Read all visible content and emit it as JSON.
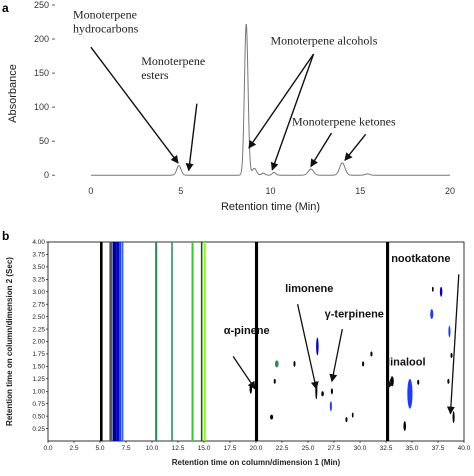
{
  "chart_data": [
    {
      "panel": "a",
      "type": "line",
      "xlabel": "Retention time (Min)",
      "ylabel": "Absorbance",
      "xlim": [
        -2,
        21
      ],
      "ylim": [
        -10,
        250
      ],
      "xticks": [
        0,
        5,
        10,
        15,
        20
      ],
      "yticks": [
        0,
        50,
        100,
        150,
        200,
        250
      ],
      "grid": false,
      "line_color": "#777777",
      "peaks": [
        {
          "rt": 4.9,
          "height": 14,
          "width": 0.12
        },
        {
          "rt": 8.65,
          "height": 222,
          "width": 0.1
        },
        {
          "rt": 9.1,
          "height": 10,
          "width": 0.12
        },
        {
          "rt": 9.6,
          "height": 3,
          "width": 0.1
        },
        {
          "rt": 10.2,
          "height": 4,
          "width": 0.1
        },
        {
          "rt": 12.25,
          "height": 9,
          "width": 0.15
        },
        {
          "rt": 14.0,
          "height": 18,
          "width": 0.15
        },
        {
          "rt": 15.4,
          "height": 2,
          "width": 0.12
        }
      ],
      "trace_range": [
        0,
        20
      ],
      "annotations": [
        {
          "lines": [
            "Monoterpene",
            "hydrocarbons"
          ],
          "text_x": -1.0,
          "text_y": 230,
          "arrow_from": [
            0.0,
            188
          ],
          "arrow_to": [
            4.85,
            18
          ]
        },
        {
          "lines": [
            "Monoterpene",
            "esters"
          ],
          "text_x": 2.8,
          "text_y": 162,
          "arrow_from": [
            5.9,
            105
          ],
          "arrow_to": [
            5.45,
            7
          ]
        },
        {
          "lines": [
            "Monoterpene alcohols"
          ],
          "text_x": 10.0,
          "text_y": 192,
          "arrow_from": [
            12.4,
            178
          ],
          "arrow_to": [
            8.8,
            40
          ]
        },
        {
          "lines": [],
          "text_x": 0,
          "text_y": 0,
          "arrow_from": [
            12.4,
            178
          ],
          "arrow_to": [
            10.1,
            8
          ]
        },
        {
          "lines": [
            "Monoterpene ketones"
          ],
          "text_x": 11.2,
          "text_y": 73,
          "arrow_from": [
            13.4,
            62
          ],
          "arrow_to": [
            12.25,
            13
          ]
        },
        {
          "lines": [],
          "text_x": 0,
          "text_y": 0,
          "arrow_from": [
            15.3,
            60
          ],
          "arrow_to": [
            14.15,
            22
          ]
        }
      ]
    },
    {
      "panel": "b",
      "type": "heatmap",
      "xlabel": "Retention time on column/dimension 1 (Min)",
      "ylabel": "Retention time on column/dimension 2 (Sec)",
      "xlim": [
        0,
        40
      ],
      "ylim": [
        0,
        4.0
      ],
      "xticks": [
        "0.0",
        "2.5",
        "5.0",
        "7.5",
        "10.0",
        "12.5",
        "15.0",
        "17.5",
        "20.0",
        "22.5",
        "25.0",
        "27.5",
        "30.0",
        "32.5",
        "35.0",
        "37.5",
        "40.0"
      ],
      "yticks": [
        "0.25",
        "0.50",
        "0.75",
        "1.00",
        "1.25",
        "1.50",
        "1.75",
        "2.00",
        "2.25",
        "2.50",
        "2.75",
        "3.00",
        "3.25",
        "3.50",
        "3.75",
        "4.00"
      ],
      "grid": false,
      "bands": [
        {
          "x": 5.0,
          "width": 0.25,
          "color": "#000000"
        },
        {
          "x": 5.9,
          "width": 0.25,
          "color": "#555555"
        },
        {
          "x": 6.2,
          "width": 0.35,
          "color": "#00008b"
        },
        {
          "x": 6.55,
          "width": 0.3,
          "color": "#0000cd"
        },
        {
          "x": 6.85,
          "width": 0.2,
          "color": "#1c3cff"
        },
        {
          "x": 7.1,
          "width": 0.15,
          "color": "#3060ff"
        },
        {
          "x": 10.3,
          "width": 0.2,
          "color": "#2e8b57"
        },
        {
          "x": 11.85,
          "width": 0.15,
          "color": "#2e8b57"
        },
        {
          "x": 13.8,
          "width": 0.2,
          "color": "#32cd32"
        },
        {
          "x": 14.7,
          "width": 0.15,
          "color": "#006400"
        },
        {
          "x": 15.0,
          "width": 0.15,
          "color": "#7cfc00"
        },
        {
          "x": 19.9,
          "width": 0.3,
          "color": "#000000"
        },
        {
          "x": 32.5,
          "width": 0.3,
          "color": "#000000"
        }
      ],
      "spots": [
        {
          "x": 19.5,
          "y": 1.05,
          "rx": 0.12,
          "ry": 0.1,
          "color": "#000000"
        },
        {
          "x": 22.0,
          "y": 1.55,
          "rx": 0.18,
          "ry": 0.07,
          "color": "#2e8b57"
        },
        {
          "x": 21.8,
          "y": 1.2,
          "rx": 0.1,
          "ry": 0.05,
          "color": "#000000"
        },
        {
          "x": 21.5,
          "y": 0.48,
          "rx": 0.15,
          "ry": 0.05,
          "color": "#000000"
        },
        {
          "x": 23.7,
          "y": 1.55,
          "rx": 0.1,
          "ry": 0.06,
          "color": "#000000"
        },
        {
          "x": 25.8,
          "y": 1.02,
          "rx": 0.1,
          "ry": 0.18,
          "color": "#000000"
        },
        {
          "x": 25.9,
          "y": 1.9,
          "rx": 0.12,
          "ry": 0.18,
          "color": "#0000cd"
        },
        {
          "x": 26.4,
          "y": 0.95,
          "rx": 0.12,
          "ry": 0.05,
          "color": "#000000"
        },
        {
          "x": 27.2,
          "y": 0.7,
          "rx": 0.1,
          "ry": 0.1,
          "color": "#1c3cff"
        },
        {
          "x": 27.3,
          "y": 1.0,
          "rx": 0.1,
          "ry": 0.06,
          "color": "#000000"
        },
        {
          "x": 28.7,
          "y": 0.43,
          "rx": 0.1,
          "ry": 0.05,
          "color": "#000000"
        },
        {
          "x": 29.3,
          "y": 0.52,
          "rx": 0.08,
          "ry": 0.05,
          "color": "#000000"
        },
        {
          "x": 30.3,
          "y": 1.55,
          "rx": 0.1,
          "ry": 0.05,
          "color": "#000000"
        },
        {
          "x": 31.1,
          "y": 1.75,
          "rx": 0.1,
          "ry": 0.05,
          "color": "#000000"
        },
        {
          "x": 33.1,
          "y": 1.2,
          "rx": 0.15,
          "ry": 0.1,
          "color": "#000000"
        },
        {
          "x": 34.8,
          "y": 0.95,
          "rx": 0.25,
          "ry": 0.3,
          "color": "#1c3cff"
        },
        {
          "x": 34.3,
          "y": 0.3,
          "rx": 0.12,
          "ry": 0.1,
          "color": "#000000"
        },
        {
          "x": 35.6,
          "y": 1.18,
          "rx": 0.1,
          "ry": 0.05,
          "color": "#000000"
        },
        {
          "x": 37.8,
          "y": 3.0,
          "rx": 0.12,
          "ry": 0.1,
          "color": "#0000cd"
        },
        {
          "x": 37.0,
          "y": 3.05,
          "rx": 0.08,
          "ry": 0.05,
          "color": "#000000"
        },
        {
          "x": 36.9,
          "y": 2.55,
          "rx": 0.15,
          "ry": 0.1,
          "color": "#1c3cff"
        },
        {
          "x": 38.6,
          "y": 2.2,
          "rx": 0.1,
          "ry": 0.12,
          "color": "#1c3cff"
        },
        {
          "x": 38.8,
          "y": 1.72,
          "rx": 0.1,
          "ry": 0.05,
          "color": "#000000"
        },
        {
          "x": 38.5,
          "y": 1.2,
          "rx": 0.1,
          "ry": 0.05,
          "color": "#000000"
        },
        {
          "x": 39.0,
          "y": 0.48,
          "rx": 0.1,
          "ry": 0.12,
          "color": "#000000"
        }
      ],
      "annotations": [
        {
          "label": "α-pinene",
          "text_x": 16.9,
          "text_y": 2.15,
          "arrow_from": [
            17.8,
            1.7
          ],
          "arrow_to": [
            19.9,
            1.05
          ]
        },
        {
          "label": "limonene",
          "text_x": 22.8,
          "text_y": 3.0,
          "arrow_from": [
            24.0,
            2.75
          ],
          "arrow_to": [
            25.8,
            1.05
          ]
        },
        {
          "label": "γ-terpinene",
          "text_x": 26.6,
          "text_y": 2.48,
          "arrow_from": [
            28.3,
            2.25
          ],
          "arrow_to": [
            27.3,
            1.2
          ]
        },
        {
          "label": "nootkatone",
          "text_x": 33.0,
          "text_y": 3.6,
          "arrow_from": [
            39.5,
            3.35
          ],
          "arrow_to": [
            38.7,
            0.55
          ]
        },
        {
          "label": "linalool",
          "text_x": 32.6,
          "text_y": 1.52,
          "arrow_from": [
            33.1,
            1.3
          ],
          "arrow_to": [
            32.6,
            1.05
          ]
        }
      ]
    }
  ],
  "figure": {
    "panel_a_letter": "a",
    "panel_b_letter": "b"
  }
}
